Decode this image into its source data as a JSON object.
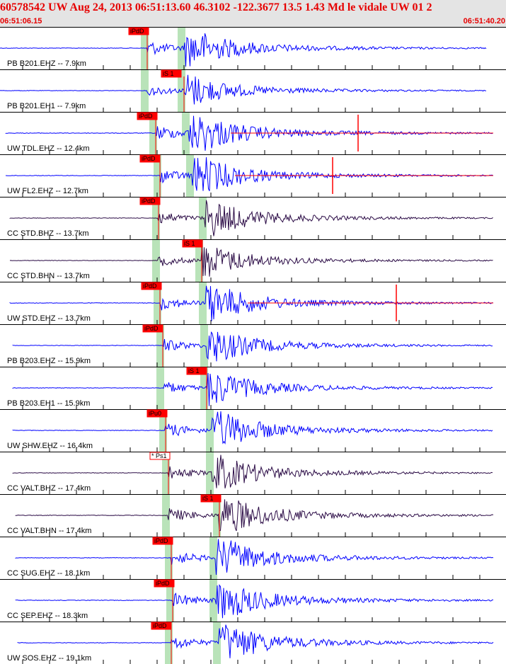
{
  "header": {
    "title": "60578542 UW Aug 24, 2013 06:51:13.60    46.3102 -122.3677 13.5 1.43 Md le vidale UW 01   2",
    "start_time": "06:51:06.15",
    "end_time": "06:51:40.20"
  },
  "colors": {
    "header_bg": "#e4e4e4",
    "header_text": "#e60000",
    "trace_blue": "#0000ff",
    "trace_dark": "#2a0a45",
    "pick_red": "#ff0000",
    "band_green": "#b9e3b9"
  },
  "traces": [
    {
      "label": "PB B201.EHZ -- 7.9km",
      "pick": "iPdD",
      "pick_type": "P",
      "color": "blue"
    },
    {
      "label": "PB B201.EH1 -- 7.9km",
      "pick": "iS 1",
      "pick_type": "S",
      "color": "blue"
    },
    {
      "label": "UW TDL.EHZ -- 12.4km",
      "pick": "iPdD",
      "pick_type": "P",
      "color": "blue"
    },
    {
      "label": "UW FL2.EHZ -- 12.7km",
      "pick": "iPdD",
      "pick_type": "P",
      "color": "blue"
    },
    {
      "label": "CC STD.BHZ -- 13.7km",
      "pick": "iPdD",
      "pick_type": "P",
      "color": "dark"
    },
    {
      "label": "CC STD.BHN -- 13.7km",
      "pick": "iS 1",
      "pick_type": "S",
      "color": "dark"
    },
    {
      "label": "UW STD.EHZ -- 13.7km",
      "pick": "iPdD",
      "pick_type": "P",
      "color": "blue"
    },
    {
      "label": "PB B203.EHZ -- 15.9km",
      "pick": "iPdD",
      "pick_type": "P",
      "color": "blue"
    },
    {
      "label": "PB B203.EH1 -- 15.9km",
      "pick": "iS 1",
      "pick_type": "S",
      "color": "blue"
    },
    {
      "label": "UW SHW.EHZ -- 16.4km",
      "pick": "iPu0",
      "pick_type": "P",
      "color": "blue"
    },
    {
      "label": "CC VALT.BHZ -- 17.4km",
      "pick": "* Ps1",
      "pick_type": "P",
      "color": "dark"
    },
    {
      "label": "CC VALT.BHN -- 17.4km",
      "pick": "iS 1",
      "pick_type": "S",
      "color": "dark"
    },
    {
      "label": "CC SUG.EHZ -- 18.1km",
      "pick": "iPdD",
      "pick_type": "P",
      "color": "blue"
    },
    {
      "label": "CC SEP.EHZ -- 18.3km",
      "pick": "iPdD",
      "pick_type": "P",
      "color": "blue"
    },
    {
      "label": "UW SOS.EHZ -- 19.1km",
      "pick": "iPdD",
      "pick_type": "P",
      "color": "blue"
    }
  ]
}
